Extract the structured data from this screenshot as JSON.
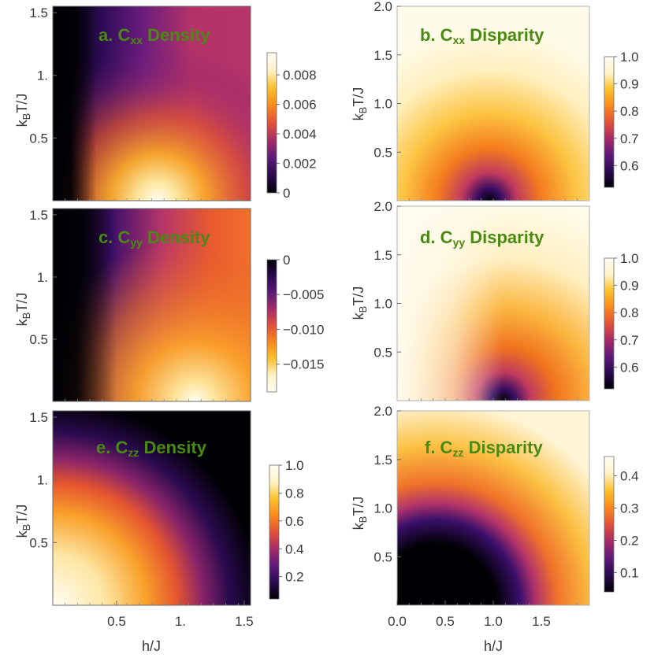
{
  "figure": {
    "colors": {
      "title": "#4a8a14",
      "frame": "#6b6b6b",
      "tick_text": "#3a3a3a",
      "colormap": [
        "#000004",
        "#2a0a4e",
        "#5d1a7a",
        "#a52b66",
        "#e2513a",
        "#f98a1b",
        "#fcc12d",
        "#fff3c9",
        "#fffdf2"
      ]
    },
    "x_axis_label": "h/J",
    "y_axis_label": "k_B T/J"
  },
  "chart_data": [
    {
      "id": "a",
      "type": "heatmap",
      "title": {
        "prefix": "a. C",
        "sub": "xx",
        "suffix": " Density"
      },
      "xlim": [
        0,
        1.55
      ],
      "ylim": [
        0,
        1.55
      ],
      "xticks": [],
      "xtick_labels": [],
      "yticks": [
        0.5,
        1.0,
        1.5
      ],
      "ytick_labels": [
        "0.5",
        "1.",
        "1.5"
      ],
      "ylabel": "k_B T/J",
      "xlabel": "",
      "colorbar": {
        "range": [
          0,
          0.0095
        ],
        "ticks": [
          0,
          0.002,
          0.004,
          0.006,
          0.008
        ],
        "tick_labels": [
          "0",
          "0.002",
          "0.004",
          "0.006",
          "0.008"
        ],
        "colormap": "inferno",
        "reversed": false
      }
    },
    {
      "id": "b",
      "type": "heatmap",
      "title": {
        "prefix": "b. C",
        "sub": "xx",
        "suffix": " Disparity"
      },
      "xlim": [
        0,
        2.0
      ],
      "ylim": [
        0,
        2.0
      ],
      "xticks": [],
      "xtick_labels": [],
      "yticks": [
        0.5,
        1.0,
        1.5,
        2.0
      ],
      "ytick_labels": [
        "0.5",
        "1.0",
        "1.5",
        "2.0"
      ],
      "ylabel": "k_B T/J",
      "xlabel": "",
      "colorbar": {
        "range": [
          0.52,
          1.0
        ],
        "ticks": [
          0.6,
          0.7,
          0.8,
          0.9,
          1.0
        ],
        "tick_labels": [
          "0.6",
          "0.7",
          "0.8",
          "0.9",
          "1.0"
        ],
        "colormap": "inferno",
        "reversed": false
      }
    },
    {
      "id": "c",
      "type": "heatmap",
      "title": {
        "prefix": "c. C",
        "sub": "yy",
        "suffix": " Density"
      },
      "xlim": [
        0,
        1.55
      ],
      "ylim": [
        0,
        1.55
      ],
      "xticks": [],
      "xtick_labels": [],
      "yticks": [
        0.5,
        1.0,
        1.5
      ],
      "ytick_labels": [
        "0.5",
        "1.",
        "1.5"
      ],
      "ylabel": "k_B T/J",
      "xlabel": "",
      "colorbar": {
        "range": [
          -0.019,
          0
        ],
        "ticks": [
          0,
          -0.005,
          -0.01,
          -0.015
        ],
        "tick_labels": [
          "0",
          "−0.005",
          "−0.010",
          "−0.015"
        ],
        "colormap": "inferno",
        "reversed": true
      }
    },
    {
      "id": "d",
      "type": "heatmap",
      "title": {
        "prefix": "d. C",
        "sub": "yy",
        "suffix": " Disparity"
      },
      "xlim": [
        0,
        2.0
      ],
      "ylim": [
        0,
        2.0
      ],
      "xticks": [],
      "xtick_labels": [],
      "yticks": [
        0.5,
        1.0,
        1.5,
        2.0
      ],
      "ytick_labels": [
        "0.5",
        "1.0",
        "1.5",
        "2.0"
      ],
      "ylabel": "k_B T/J",
      "xlabel": "",
      "colorbar": {
        "range": [
          0.52,
          1.0
        ],
        "ticks": [
          0.6,
          0.7,
          0.8,
          0.9,
          1.0
        ],
        "tick_labels": [
          "0.6",
          "0.7",
          "0.8",
          "0.9",
          "1.0"
        ],
        "colormap": "inferno",
        "reversed": false
      }
    },
    {
      "id": "e",
      "type": "heatmap",
      "title": {
        "prefix": "e. C",
        "sub": "zz",
        "suffix": " Density"
      },
      "xlim": [
        0,
        1.55
      ],
      "ylim": [
        0,
        1.55
      ],
      "xticks": [
        0.5,
        1.0,
        1.5
      ],
      "xtick_labels": [
        "0.5",
        "1.",
        "1.5"
      ],
      "yticks": [
        0.5,
        1.0,
        1.5
      ],
      "ytick_labels": [
        "0.5",
        "1.",
        "1.5"
      ],
      "ylabel": "k_B T/J",
      "xlabel": "h/J",
      "colorbar": {
        "range": [
          0.04,
          1.0
        ],
        "ticks": [
          0.2,
          0.4,
          0.6,
          0.8,
          1.0
        ],
        "tick_labels": [
          "0.2",
          "0.4",
          "0.6",
          "0.8",
          "1.0"
        ],
        "colormap": "inferno",
        "reversed": false
      }
    },
    {
      "id": "f",
      "type": "heatmap",
      "title": {
        "prefix": "f. C",
        "sub": "zz",
        "suffix": " Disparity"
      },
      "xlim": [
        0,
        2.0
      ],
      "ylim": [
        0,
        2.0
      ],
      "xticks": [
        0.0,
        0.5,
        1.0,
        1.5
      ],
      "xtick_labels": [
        "0.0",
        "0.5",
        "1.0",
        "1.5"
      ],
      "yticks": [
        0.5,
        1.0,
        1.5,
        2.0
      ],
      "ytick_labels": [
        "0.5",
        "1.0",
        "1.5",
        "2.0"
      ],
      "ylabel": "k_B T/J",
      "xlabel": "h/J",
      "colorbar": {
        "range": [
          0.04,
          0.46
        ],
        "ticks": [
          0.1,
          0.2,
          0.3,
          0.4
        ],
        "tick_labels": [
          "0.1",
          "0.2",
          "0.3",
          "0.4"
        ],
        "colormap": "inferno",
        "reversed": false
      }
    }
  ]
}
